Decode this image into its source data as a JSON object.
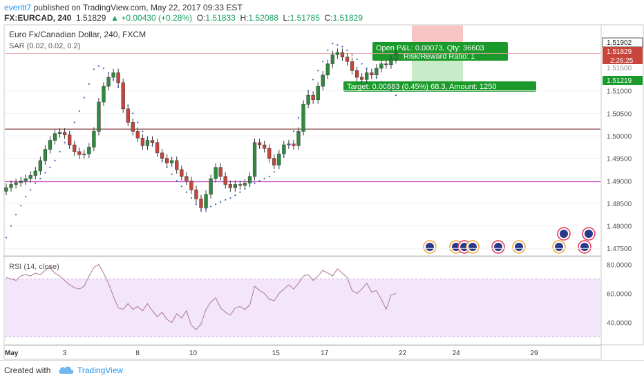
{
  "header": {
    "author": "everitt7",
    "published_text": " published on TradingView.com, May 22, 2017 09:33 EST",
    "symbol": "FX:EURCAD, 240",
    "last": "1.51829",
    "change": "+0.00430 (+0.28%)",
    "open_label": "O:",
    "open": "1.51833",
    "high_label": "H:",
    "high": "1.52088",
    "low_label": "L:",
    "low": "1.51785",
    "close_label": "C:",
    "close": "1.51829"
  },
  "chart": {
    "title": "Euro Fx/Canadian Dollar, 240, FXCM",
    "sar_label": "SAR (0.02, 0.02, 0.2)",
    "rsi_label": "RSI (14, close)",
    "x_labels": [
      "May",
      "3",
      "8",
      "10",
      "15",
      "17",
      "22",
      "24",
      "29"
    ],
    "price_ticks": [
      "1.51000",
      "1.50500",
      "1.50000",
      "1.49500",
      "1.49000",
      "1.48500",
      "1.48000",
      "1.47500"
    ],
    "rsi_ticks": [
      "80.0000",
      "60.0000",
      "40.0000"
    ],
    "price_tags": [
      "1.51902",
      "1.51829",
      "2:26:25",
      "1.51500",
      "1.51219"
    ],
    "hlines": [
      1.5015,
      1.4898
    ],
    "position": {
      "pnl_line1": "Open P&L: 0.00073, Qty: 36603",
      "pnl_line2": "Risk/Reward Ratio: 1",
      "target": "Target: 0.00683 (0.45%) 68.3, Amount: 1250"
    },
    "colors": {
      "up": "#2e8b3e",
      "down": "#c8453c",
      "sar": "#3b5fb8",
      "rsi": "#b0739a",
      "hline_dark": "#7a2a2a",
      "hline_magenta": "#c52fc0",
      "target_green": "#1a9a2a",
      "stop_red": "#f8c4c4",
      "profit_green": "#c8ecc8"
    }
  },
  "chart_data": {
    "type": "candlestick",
    "price_ylim": [
      1.4735,
      1.5245
    ],
    "rsi_ylim": [
      25,
      85
    ],
    "rsi_band": [
      30,
      70
    ],
    "ohlc_close": [
      1.4885,
      1.4892,
      1.4896,
      1.49,
      1.4905,
      1.4912,
      1.4922,
      1.4945,
      1.497,
      1.499,
      1.5005,
      1.5008,
      1.5002,
      1.498,
      1.4965,
      1.4958,
      1.496,
      1.4975,
      1.501,
      1.5075,
      1.511,
      1.513,
      1.514,
      1.5118,
      1.506,
      1.503,
      1.501,
      1.4995,
      1.4978,
      1.499,
      1.4985,
      1.4962,
      1.495,
      1.494,
      1.4945,
      1.4925,
      1.491,
      1.49,
      1.488,
      1.486,
      1.484,
      1.487,
      1.4905,
      1.493,
      1.491,
      1.4892,
      1.4885,
      1.4892,
      1.489,
      1.4895,
      1.491,
      1.4985,
      1.498,
      1.4972,
      1.495,
      1.4935,
      1.496,
      1.498,
      1.4982,
      1.4978,
      1.501,
      1.507,
      1.509,
      1.508,
      1.511,
      1.5135,
      1.516,
      1.518,
      1.5185,
      1.5175,
      1.5165,
      1.5145,
      1.513,
      1.5125,
      1.514,
      1.5135,
      1.515,
      1.516,
      1.5158,
      1.517,
      1.5183
    ],
    "rsi": [
      71,
      70,
      69,
      72,
      73,
      72,
      74,
      73,
      76,
      78,
      74,
      72,
      69,
      66,
      64,
      63,
      65,
      72,
      78,
      80,
      74,
      67,
      58,
      50,
      49,
      53,
      49,
      51,
      48,
      53,
      48,
      44,
      47,
      42,
      40,
      46,
      43,
      48,
      38,
      35,
      39,
      49,
      54,
      57,
      50,
      47,
      45,
      50,
      51,
      49,
      52,
      65,
      62,
      60,
      56,
      55,
      60,
      63,
      66,
      63,
      67,
      72,
      73,
      69,
      72,
      76,
      74,
      72,
      77,
      74,
      71,
      62,
      60,
      63,
      67,
      61,
      62,
      56,
      49,
      59,
      60
    ],
    "sar": [
      1.4774,
      1.48,
      1.4825,
      1.4845,
      1.4865,
      1.488,
      1.4895,
      1.4905,
      1.4918,
      1.493,
      1.4945,
      1.4965,
      1.4985,
      1.5005,
      1.503,
      1.5055,
      1.5085,
      1.5115,
      1.5148,
      1.5155,
      1.515,
      1.514,
      1.5125,
      1.5108,
      1.5088,
      1.5068,
      1.505,
      1.503,
      1.501,
      1.4995,
      1.4978,
      1.4962,
      1.4945,
      1.493,
      1.4915,
      1.49,
      1.4888,
      1.4875,
      1.4862,
      1.4848,
      1.4835,
      1.4838,
      1.4843,
      1.4848,
      1.4853,
      1.4858,
      1.4862,
      1.4868,
      1.4875,
      1.4882,
      1.489,
      1.4895,
      1.49,
      1.4905,
      1.491,
      1.492,
      1.4935,
      1.4955,
      1.498,
      1.501,
      1.504,
      1.507,
      1.51,
      1.5125,
      1.5145,
      1.5165,
      1.519,
      1.5205,
      1.5202,
      1.5198,
      1.519,
      1.518,
      1.517,
      1.516,
      1.515,
      1.514,
      1.513,
      1.512,
      1.511,
      1.51,
      1.509
    ]
  },
  "footer": {
    "created_with": "Created with",
    "brand": "TradingView"
  }
}
